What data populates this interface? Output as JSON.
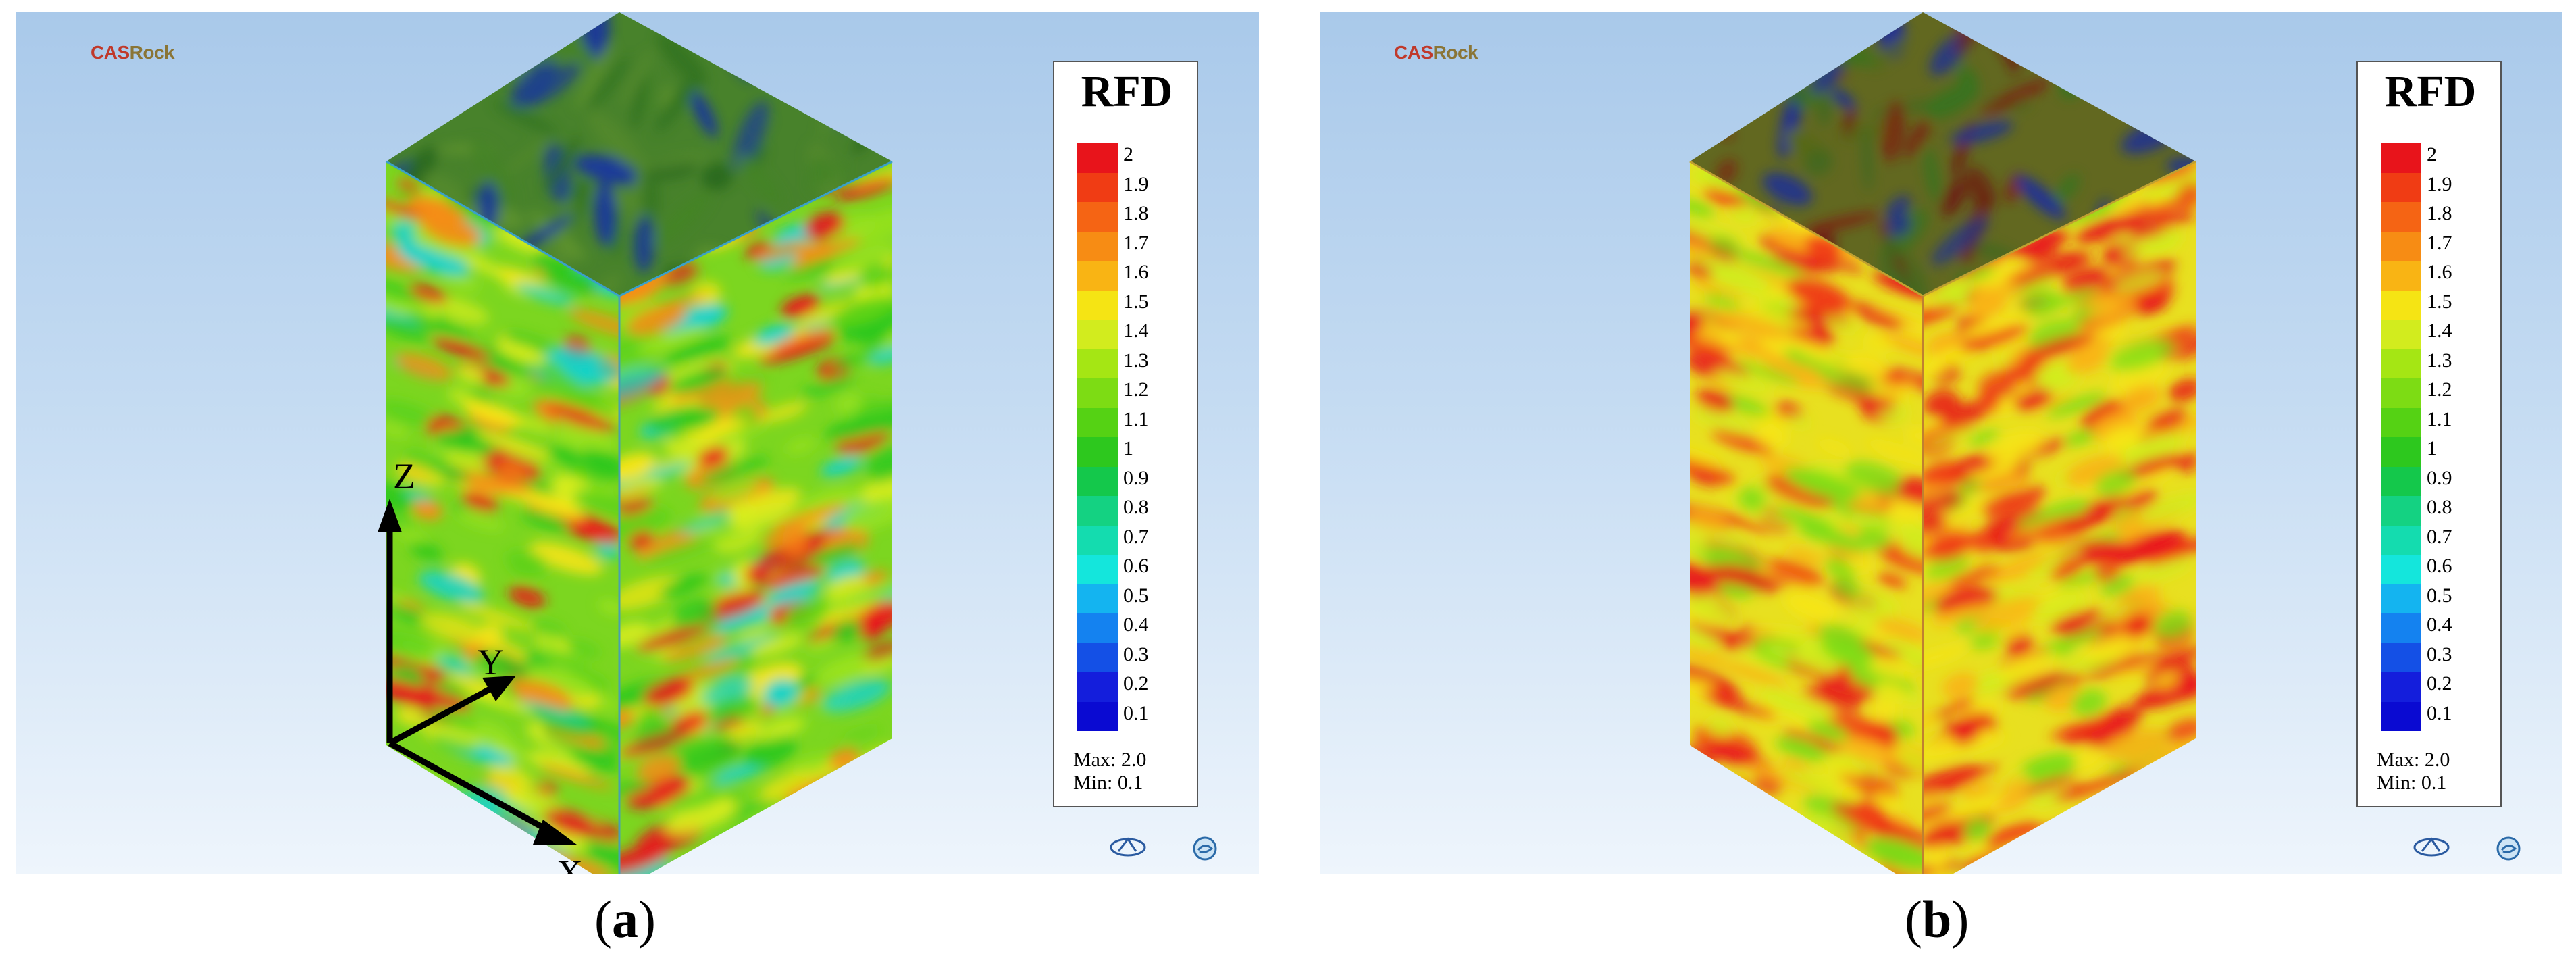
{
  "logo": {
    "cas": "CAS",
    "rock": "Rock"
  },
  "legend": {
    "title": "RFD",
    "levels": [
      "2",
      "1.9",
      "1.8",
      "1.7",
      "1.6",
      "1.5",
      "1.4",
      "1.3",
      "1.2",
      "1.1",
      "1",
      "0.9",
      "0.8",
      "0.7",
      "0.6",
      "0.5",
      "0.4",
      "0.3",
      "0.2",
      "0.1"
    ],
    "colors": [
      "#e8141b",
      "#f03c14",
      "#f56414",
      "#f78c14",
      "#f9b414",
      "#f5e414",
      "#d2ec1e",
      "#a5e614",
      "#7ddc14",
      "#55d214",
      "#2dc81e",
      "#14c84b",
      "#14d282",
      "#14dcaf",
      "#14e6dc",
      "#14b4f0",
      "#1482f0",
      "#1450e6",
      "#141edc",
      "#0a0ad2"
    ],
    "max_label": "Max:  2.0",
    "min_label": "Min:  0.1"
  },
  "axes": {
    "z": "Z",
    "y": "Y",
    "x": "X"
  },
  "captions": [
    {
      "open": "(",
      "letter": "a",
      "close": ")"
    },
    {
      "open": "(",
      "letter": "b",
      "close": ")"
    }
  ]
}
